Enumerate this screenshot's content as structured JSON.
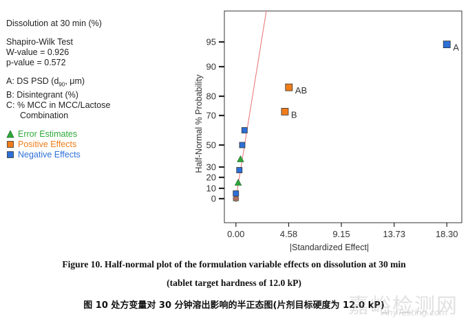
{
  "info": {
    "response": "Dissolution at 30 min (%)",
    "test_name": "Shapiro-Wilk Test",
    "w_value": "W-value = 0.926",
    "p_value": "p-value = 0.572",
    "factor_a": "A: DS PSD (d",
    "factor_a_sub": "90",
    "factor_a_end": ", μm)",
    "factor_b": "B: Disintegrant (%)",
    "factor_c1": "C: % MCC in MCC/Lactose",
    "factor_c2": "Combination"
  },
  "legend": {
    "error": "Error Estimates",
    "positive": "Positive Effects",
    "negative": "Negative Effects"
  },
  "colors": {
    "error": "#2ea83a",
    "positive": "#f07d1a",
    "negative": "#2d6fd6",
    "reference_line": "#e87070"
  },
  "chart_data": {
    "type": "scatter",
    "xlabel": "|Standardized Effect|",
    "ylabel": "Half-Normal % Probability",
    "xlim": [
      -1.0,
      19.6
    ],
    "x_ticks": [
      "0.00",
      "4.58",
      "9.15",
      "13.73",
      "18.30"
    ],
    "x_tick_values": [
      0.0,
      4.58,
      9.15,
      13.73,
      18.3
    ],
    "y_ticks": [
      "0",
      "10",
      "20",
      "30",
      "50",
      "70",
      "80",
      "90",
      "95"
    ],
    "y_tick_values": [
      0,
      10,
      20,
      30,
      50,
      70,
      80,
      90,
      95
    ],
    "reference_line": [
      [
        0.0,
        0
      ],
      [
        1.9,
        99
      ]
    ],
    "series": [
      {
        "kind": "error",
        "points": [
          [
            0.0,
            0
          ],
          [
            0.2,
            15
          ],
          [
            0.4,
            37
          ]
        ]
      },
      {
        "kind": "positive",
        "points": [
          [
            4.25,
            72,
            "B"
          ],
          [
            4.6,
            83,
            "AB"
          ]
        ]
      },
      {
        "kind": "negative",
        "points": [
          [
            0.0,
            5
          ],
          [
            0.3,
            27
          ],
          [
            0.55,
            50
          ],
          [
            0.75,
            60
          ],
          [
            18.3,
            94.5,
            "A"
          ]
        ]
      }
    ]
  },
  "captions": {
    "en_line1": "Figure 10. Half-normal plot of the formulation variable effects on dissolution at 30 min",
    "en_line2": "(tablet target hardness of 12.0 kP)",
    "zh": "图 10  处方变量对 30 分钟溶出影响的半正态图(片剂目标硬度为 12.0 kP)"
  },
  "watermark": {
    "text": "嘉峪检测网",
    "url": "AnyTesting.com"
  }
}
